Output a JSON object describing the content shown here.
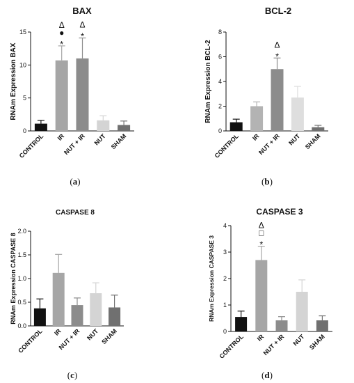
{
  "chart_data": [
    {
      "type": "bar",
      "title": "BAX",
      "ylabel": "RNAm Expression BAX",
      "panel_label": "a",
      "categories": [
        "CONTROL",
        "IR",
        "NUT + IR",
        "NUT",
        "SHAM"
      ],
      "values": [
        1.1,
        10.7,
        11.0,
        1.6,
        0.9
      ],
      "errors": [
        0.5,
        2.2,
        3.1,
        0.7,
        0.6
      ],
      "colors": [
        "#111111",
        "#a6a6a6",
        "#8c8c8c",
        "#d4d4d4",
        "#707070"
      ],
      "ylim": [
        0,
        15
      ],
      "yticks": [
        "0",
        "5",
        "10",
        "15"
      ],
      "markers": [
        {
          "category": "IR",
          "symbols": [
            "Δ",
            "●",
            "*"
          ]
        },
        {
          "category": "NUT + IR",
          "symbols": [
            "Δ",
            "*"
          ]
        }
      ]
    },
    {
      "type": "bar",
      "title": "BCL-2",
      "ylabel": "RNAm Expression BCL-2",
      "panel_label": "b",
      "categories": [
        "CONTROL",
        "IR",
        "NUT + IR",
        "NUT",
        "SHAM"
      ],
      "values": [
        0.7,
        2.0,
        5.0,
        2.7,
        0.3
      ],
      "errors": [
        0.25,
        0.35,
        0.9,
        0.9,
        0.15
      ],
      "colors": [
        "#111111",
        "#b3b3b3",
        "#8c8c8c",
        "#dedede",
        "#707070"
      ],
      "ylim": [
        0,
        8
      ],
      "yticks": [
        "0",
        "2",
        "4",
        "6",
        "8"
      ],
      "markers": [
        {
          "category": "NUT + IR",
          "symbols": [
            "Δ",
            "*"
          ]
        }
      ]
    },
    {
      "type": "bar",
      "title": "CASPASE 8",
      "ylabel": "RNAm Expression CASPASE 8",
      "panel_label": "c",
      "categories": [
        "CONTROL",
        "IR",
        "NUT + IR",
        "NUT",
        "SHAM"
      ],
      "values": [
        0.37,
        1.12,
        0.44,
        0.69,
        0.39
      ],
      "errors": [
        0.2,
        0.39,
        0.15,
        0.22,
        0.26
      ],
      "colors": [
        "#111111",
        "#a6a6a6",
        "#8c8c8c",
        "#d4d4d4",
        "#707070"
      ],
      "ylim": [
        0,
        2.0
      ],
      "yticks": [
        "0.0",
        "0.5",
        "1.0",
        "1.5",
        "2.0"
      ],
      "markers": []
    },
    {
      "type": "bar",
      "title": "CASPASE 3",
      "ylabel": "RNAm Expression CASPASE 3",
      "panel_label": "d",
      "categories": [
        "CONTROL",
        "IR",
        "NUT + IR",
        "NUT",
        "SHAM"
      ],
      "values": [
        0.55,
        2.7,
        0.42,
        1.5,
        0.42
      ],
      "errors": [
        0.22,
        0.52,
        0.14,
        0.45,
        0.17
      ],
      "colors": [
        "#111111",
        "#a6a6a6",
        "#8c8c8c",
        "#d4d4d4",
        "#707070"
      ],
      "ylim": [
        0,
        4
      ],
      "yticks": [
        "0",
        "1",
        "2",
        "3",
        "4"
      ],
      "markers": [
        {
          "category": "IR",
          "symbols": [
            "Δ",
            "□",
            "*"
          ]
        }
      ]
    }
  ]
}
